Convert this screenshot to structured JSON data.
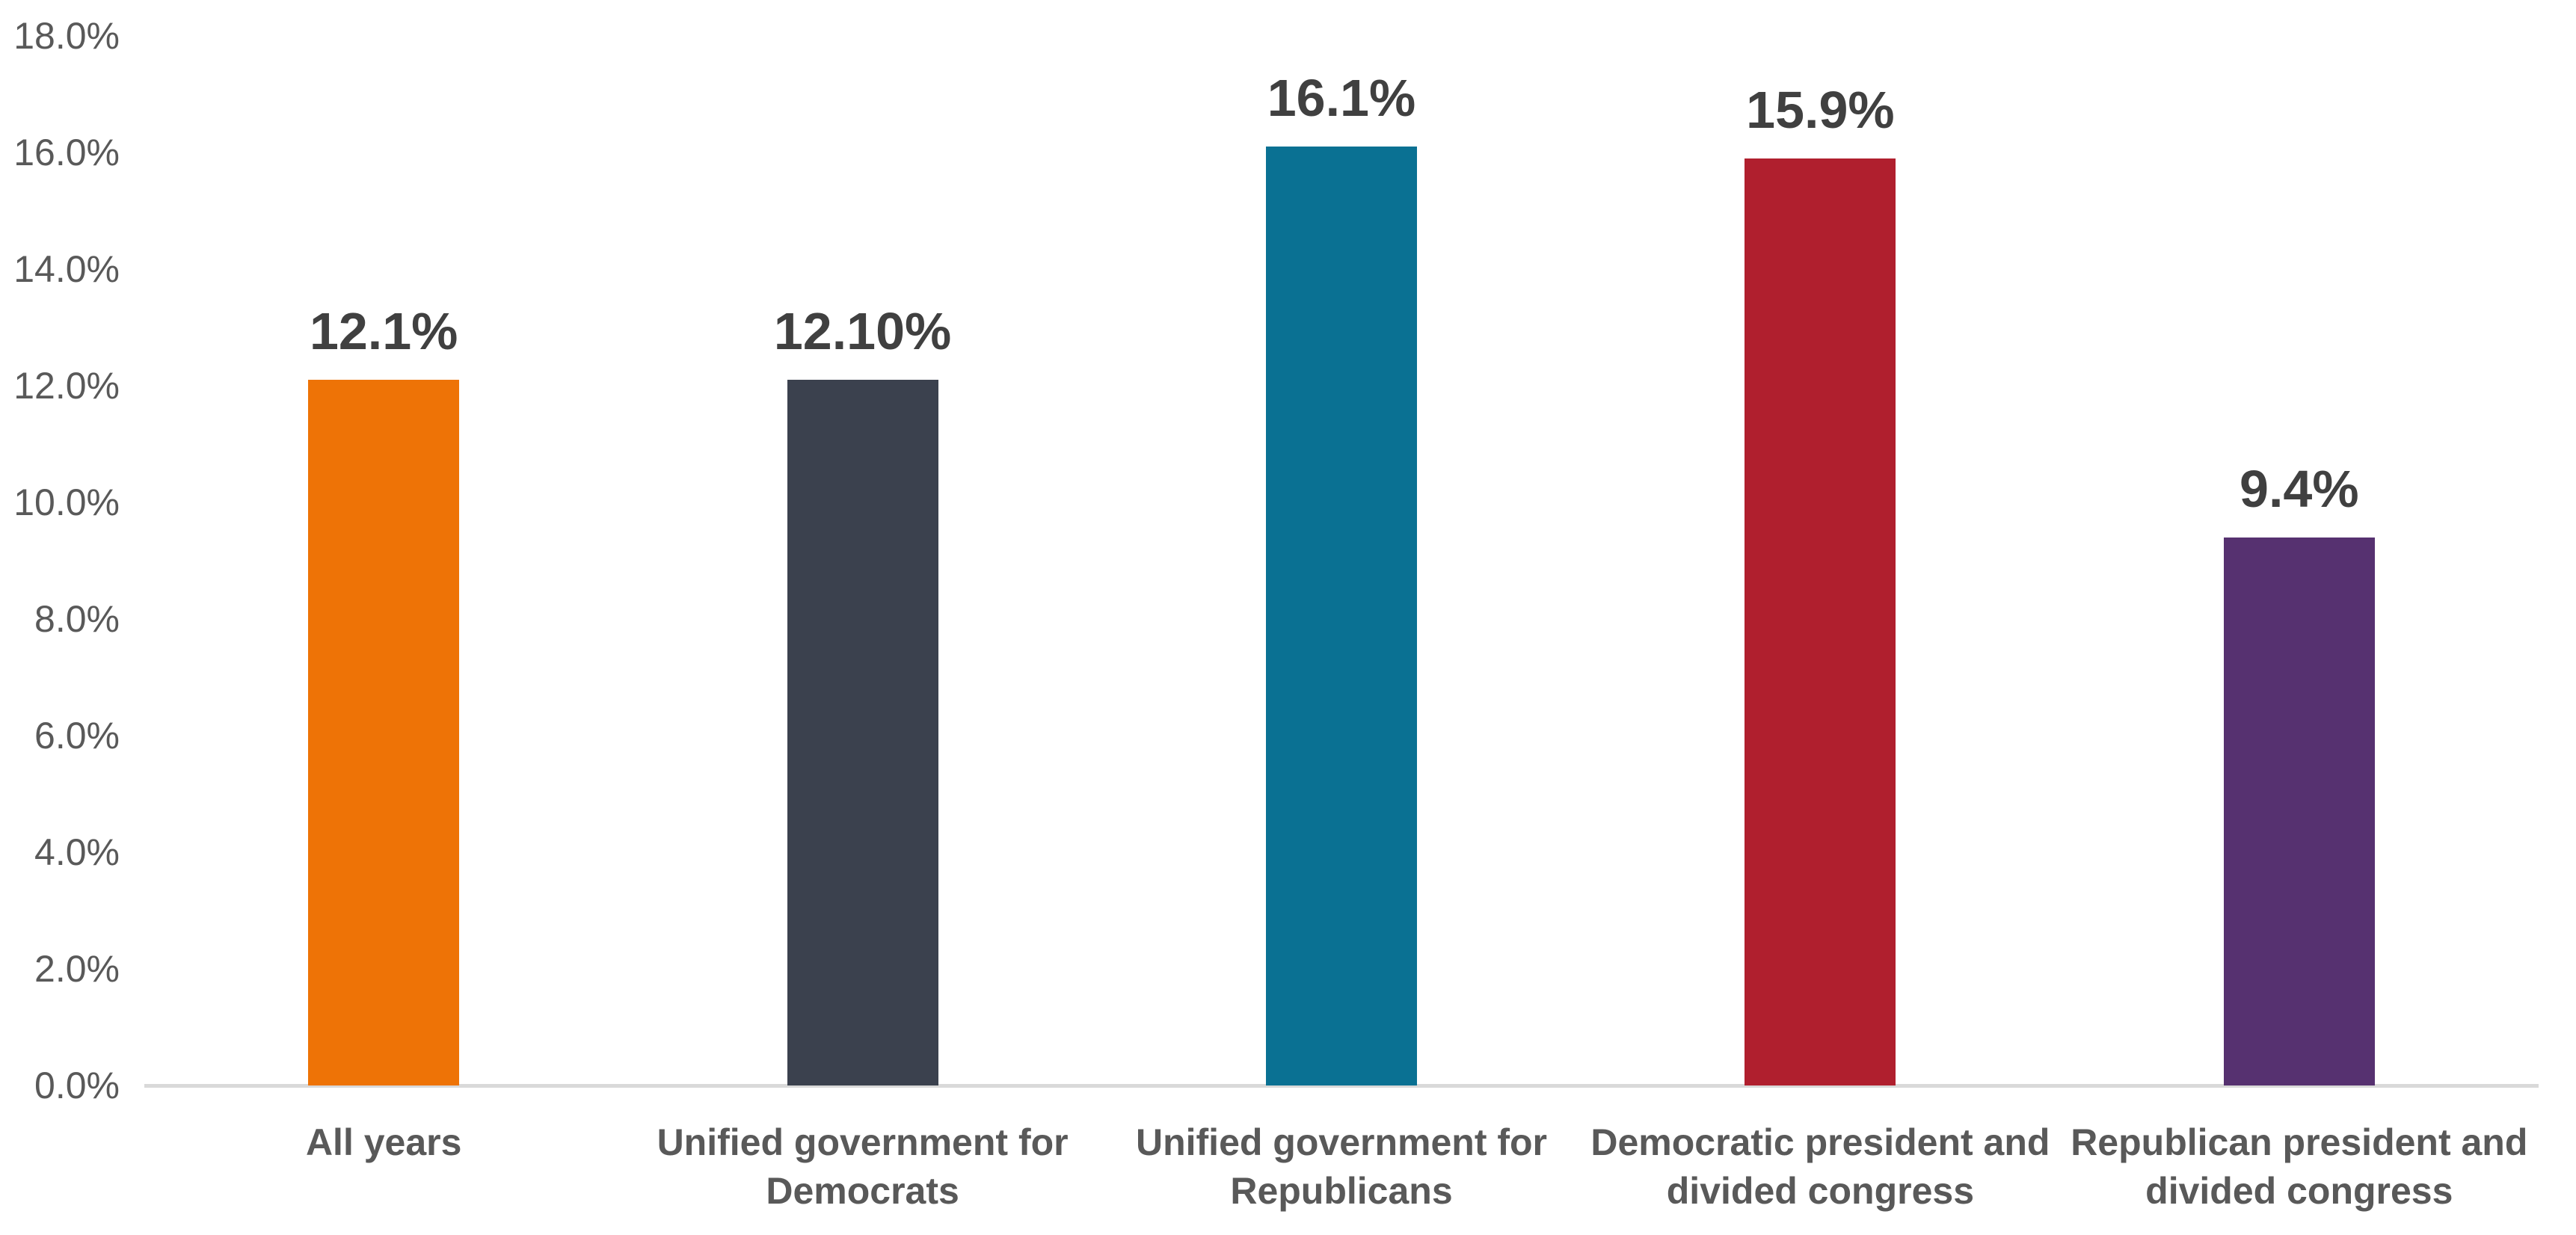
{
  "chart_data": {
    "type": "bar",
    "categories": [
      "All years",
      "Unified government for Democrats",
      "Unified government for Republicans",
      "Democratic president and divided congress",
      "Republican president and divided congress"
    ],
    "values": [
      12.1,
      12.1,
      16.1,
      15.9,
      9.4
    ],
    "data_labels": [
      "12.1%",
      "12.10%",
      "16.1%",
      "15.9%",
      "9.4%"
    ],
    "bar_colors": [
      "#EE7306",
      "#3B414E",
      "#0A7193",
      "#B01F2E",
      "#563170"
    ],
    "title": "",
    "xlabel": "",
    "ylabel": "",
    "ylim": [
      0,
      18
    ],
    "ytick_step": 2,
    "ytick_labels": [
      "0.0%",
      "2.0%",
      "4.0%",
      "6.0%",
      "8.0%",
      "10.0%",
      "12.0%",
      "14.0%",
      "16.0%",
      "18.0%"
    ],
    "grid": false,
    "legend": false,
    "data_label_position": "above-bar-end"
  },
  "colors": {
    "background": "#FFFFFF",
    "axis_line": "#D9D9D9",
    "tick_text": "#595959",
    "category_text": "#595959",
    "data_label_text": "#404040"
  }
}
